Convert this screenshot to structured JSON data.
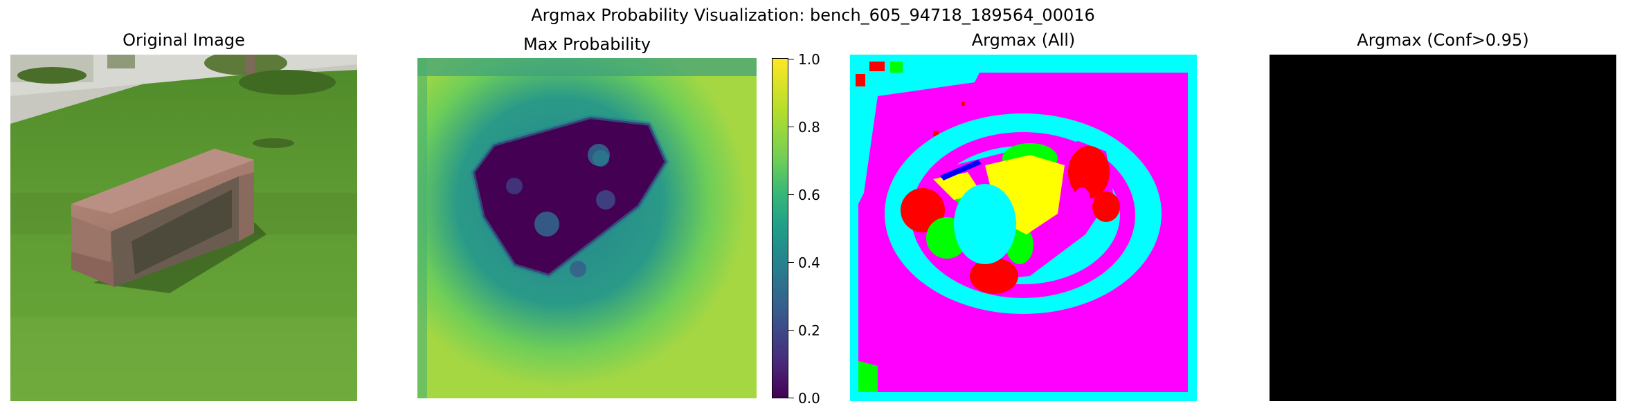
{
  "figure": {
    "suptitle": "Argmax Probability Visualization: bench_605_94718_189564_00016"
  },
  "panels": {
    "original": {
      "title": "Original Image"
    },
    "max_prob": {
      "title": "Max Probability"
    },
    "argmax_all": {
      "title": "Argmax (All)"
    },
    "argmax_conf": {
      "title": "Argmax (Conf>0.95)"
    }
  },
  "colorbar": {
    "colormap": "viridis",
    "ticks": [
      "0.0",
      "0.2",
      "0.4",
      "0.6",
      "0.8",
      "1.0"
    ]
  },
  "colors": {
    "argmax_classes": [
      "#ff00ff",
      "#00ffff",
      "#ff0000",
      "#00ff00",
      "#ffff00",
      "#0000ff"
    ],
    "conf_panel_background": "#000000"
  }
}
